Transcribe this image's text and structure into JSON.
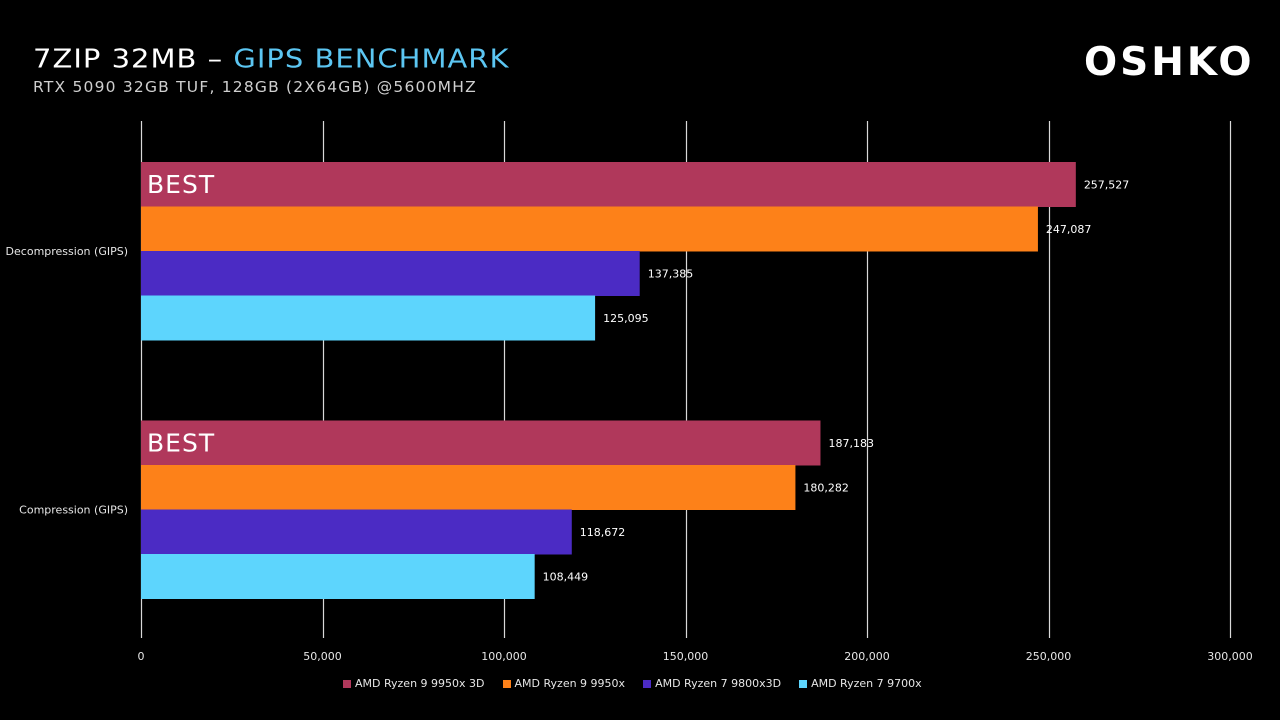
{
  "header": {
    "title_main": "7ZIP 32MB – ",
    "title_accent": "GIPS BENCHMARK",
    "subtitle": "RTX 5090 32GB TUF, 128GB (2X64GB) @5600MHZ",
    "logo": "OSHKO"
  },
  "colors": {
    "background": "#000000",
    "accent": "#5cc6f2",
    "gridline": "#d9d9d9",
    "series": [
      "#b0385b",
      "#fd8119",
      "#4b2bc4",
      "#5dd5fd"
    ]
  },
  "chart_data": {
    "type": "bar",
    "orientation": "horizontal",
    "title": "7ZIP 32MB – GIPS BENCHMARK",
    "subtitle": "RTX 5090 32GB TUF, 128GB (2X64GB) @5600MHZ",
    "categories": [
      "Decompression (GIPS)",
      "Compression (GIPS)"
    ],
    "series": [
      {
        "name": "AMD Ryzen 9 9950x 3D",
        "values": [
          257527,
          187183
        ],
        "labels": [
          "257,527",
          "187,183"
        ]
      },
      {
        "name": "AMD Ryzen 9 9950x",
        "values": [
          247087,
          180282
        ],
        "labels": [
          "247,087",
          "180,282"
        ]
      },
      {
        "name": "AMD Ryzen 7 9800x3D",
        "values": [
          137385,
          118672
        ],
        "labels": [
          "137,385",
          "118,672"
        ]
      },
      {
        "name": "AMD Ryzen 7 9700x",
        "values": [
          125095,
          108449
        ],
        "labels": [
          "125,095",
          "108,449"
        ]
      }
    ],
    "annotations": [
      {
        "text": "BEST",
        "category": "Decompression (GIPS)",
        "series": "AMD Ryzen 9 9950x 3D"
      },
      {
        "text": "BEST",
        "category": "Compression (GIPS)",
        "series": "AMD Ryzen 9 9950x 3D"
      }
    ],
    "xlim": [
      0,
      300000
    ],
    "xticks": [
      0,
      50000,
      100000,
      150000,
      200000,
      250000,
      300000
    ],
    "xtick_labels": [
      "0",
      "50,000",
      "100,000",
      "150,000",
      "200,000",
      "250,000",
      "300,000"
    ],
    "xlabel": "",
    "ylabel": "",
    "grid": true,
    "legend": "bottom"
  }
}
